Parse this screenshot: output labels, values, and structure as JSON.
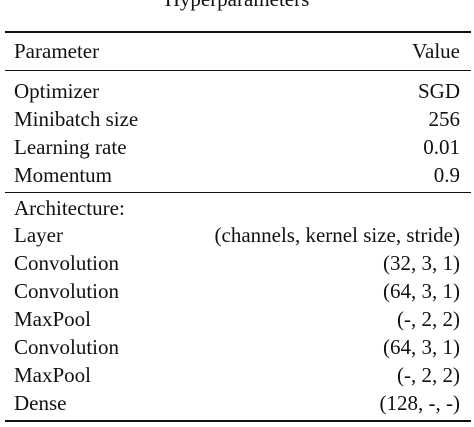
{
  "caption_fragment": "Hyperparameters",
  "header": {
    "parameter": "Parameter",
    "value": "Value"
  },
  "training": [
    {
      "parameter": "Optimizer",
      "value": "SGD"
    },
    {
      "parameter": "Minibatch size",
      "value": "256"
    },
    {
      "parameter": "Learning rate",
      "value": "0.01"
    },
    {
      "parameter": "Momentum",
      "value": "0.9"
    }
  ],
  "architecture": {
    "title": "Architecture:",
    "layers": [
      {
        "parameter": "Layer",
        "value": "(channels, kernel size, stride)"
      },
      {
        "parameter": "Convolution",
        "value": "(32, 3, 1)"
      },
      {
        "parameter": "Convolution",
        "value": "(64, 3, 1)"
      },
      {
        "parameter": "MaxPool",
        "value": "(-, 2, 2)"
      },
      {
        "parameter": "Convolution",
        "value": "(64, 3, 1)"
      },
      {
        "parameter": "MaxPool",
        "value": "(-, 2, 2)"
      },
      {
        "parameter": "Dense",
        "value": "(128, -, -)"
      }
    ]
  }
}
